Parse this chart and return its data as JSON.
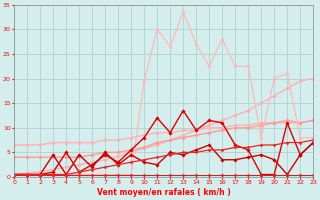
{
  "background_color": "#d4eeee",
  "grid_color": "#aacccc",
  "xlabel": "Vent moyen/en rafales ( km/h )",
  "xlim": [
    0,
    23
  ],
  "ylim": [
    0,
    35
  ],
  "yticks": [
    0,
    5,
    10,
    15,
    20,
    25,
    30,
    35
  ],
  "xticks": [
    0,
    1,
    2,
    3,
    4,
    5,
    6,
    7,
    8,
    9,
    10,
    11,
    12,
    13,
    14,
    15,
    16,
    17,
    18,
    19,
    20,
    21,
    22,
    23
  ],
  "series": [
    {
      "x": [
        0,
        1,
        2,
        3,
        4,
        5,
        6,
        7,
        8,
        9,
        10,
        11,
        12,
        13,
        14,
        15,
        16,
        17,
        18,
        19,
        20,
        21,
        22,
        23
      ],
      "y": [
        0.5,
        0.8,
        1.1,
        1.5,
        2.0,
        2.5,
        3.0,
        3.5,
        4.2,
        5.0,
        5.8,
        6.5,
        7.5,
        8.5,
        9.5,
        10.5,
        11.5,
        12.5,
        13.5,
        15.0,
        16.5,
        18.0,
        19.5,
        20.0
      ],
      "color": "#ffb0b0",
      "linewidth": 1.0,
      "marker": "D",
      "markersize": 1.8,
      "linestyle": "-"
    },
    {
      "x": [
        0,
        1,
        2,
        3,
        4,
        5,
        6,
        7,
        8,
        9,
        10,
        11,
        12,
        13,
        14,
        15,
        16,
        17,
        18,
        19,
        20,
        21,
        22,
        23
      ],
      "y": [
        6.5,
        6.5,
        6.5,
        7.0,
        7.0,
        7.0,
        7.0,
        7.5,
        7.5,
        8.0,
        8.5,
        9.0,
        9.0,
        9.5,
        9.5,
        10.0,
        10.0,
        10.5,
        10.5,
        11.0,
        11.0,
        11.0,
        11.0,
        11.5
      ],
      "color": "#ffb0b0",
      "linewidth": 1.0,
      "marker": "D",
      "markersize": 1.8,
      "linestyle": "-"
    },
    {
      "x": [
        0,
        1,
        2,
        3,
        4,
        5,
        6,
        7,
        8,
        9,
        10,
        11,
        12,
        13,
        14,
        15,
        16,
        17,
        18,
        19,
        20,
        21,
        22,
        23
      ],
      "y": [
        4.0,
        4.0,
        4.0,
        4.0,
        4.0,
        4.0,
        4.5,
        5.0,
        5.0,
        5.5,
        6.0,
        7.0,
        7.5,
        8.0,
        8.5,
        9.0,
        9.5,
        10.0,
        10.0,
        10.5,
        11.0,
        11.5,
        11.0,
        11.5
      ],
      "color": "#ff9999",
      "linewidth": 1.0,
      "marker": "D",
      "markersize": 1.8,
      "linestyle": "-"
    },
    {
      "x": [
        0,
        1,
        2,
        3,
        4,
        5,
        6,
        7,
        8,
        9,
        10,
        11,
        12,
        13,
        14,
        15,
        16,
        17,
        18,
        19,
        20,
        21,
        22,
        23
      ],
      "y": [
        0.5,
        0.5,
        0.5,
        0.5,
        0.5,
        0.5,
        0.5,
        0.5,
        0.5,
        0.5,
        19.5,
        30.0,
        26.5,
        33.5,
        27.0,
        22.5,
        28.0,
        22.5,
        22.5,
        8.0,
        20.0,
        21.0,
        8.0,
        8.0
      ],
      "color": "#ffb8b8",
      "linewidth": 0.9,
      "marker": "D",
      "markersize": 1.8,
      "linestyle": "-"
    },
    {
      "x": [
        0,
        1,
        2,
        3,
        4,
        5,
        6,
        7,
        8,
        9,
        10,
        11,
        12,
        13,
        14,
        15,
        16,
        17,
        18,
        19,
        20,
        21,
        22,
        23
      ],
      "y": [
        0.5,
        0.5,
        0.5,
        1.0,
        5.0,
        1.0,
        2.5,
        4.5,
        3.0,
        5.5,
        8.0,
        12.0,
        9.0,
        13.5,
        9.5,
        11.5,
        11.0,
        6.5,
        5.5,
        0.5,
        0.5,
        11.0,
        4.5,
        7.0
      ],
      "color": "#dd0000",
      "linewidth": 1.0,
      "marker": "D",
      "markersize": 1.8,
      "linestyle": "-"
    },
    {
      "x": [
        0,
        1,
        2,
        3,
        4,
        5,
        6,
        7,
        8,
        9,
        10,
        11,
        12,
        13,
        14,
        15,
        16,
        17,
        18,
        19,
        20,
        21,
        22,
        23
      ],
      "y": [
        0.5,
        0.5,
        0.5,
        4.5,
        0.5,
        4.5,
        2.0,
        5.0,
        2.5,
        4.5,
        3.0,
        2.5,
        5.0,
        4.5,
        5.5,
        6.5,
        3.5,
        3.5,
        4.0,
        4.5,
        3.5,
        0.5,
        4.5,
        7.0
      ],
      "color": "#cc0000",
      "linewidth": 1.0,
      "marker": "D",
      "markersize": 1.8,
      "linestyle": "-"
    },
    {
      "x": [
        0,
        1,
        2,
        3,
        4,
        5,
        6,
        7,
        8,
        9,
        10,
        11,
        12,
        13,
        14,
        15,
        16,
        17,
        18,
        19,
        20,
        21,
        22,
        23
      ],
      "y": [
        0.5,
        0.5,
        0.5,
        0.5,
        0.5,
        0.5,
        0.5,
        0.5,
        0.5,
        0.5,
        0.5,
        0.5,
        0.5,
        0.5,
        0.5,
        0.5,
        0.5,
        0.5,
        0.5,
        0.5,
        0.5,
        0.5,
        0.5,
        0.5
      ],
      "color": "#cc2222",
      "linewidth": 0.8,
      "marker": "D",
      "markersize": 1.5,
      "linestyle": "-"
    },
    {
      "x": [
        0,
        1,
        2,
        3,
        4,
        5,
        6,
        7,
        8,
        9,
        10,
        11,
        12,
        13,
        14,
        15,
        16,
        17,
        18,
        19,
        20,
        21,
        22,
        23
      ],
      "y": [
        0.5,
        0.5,
        0.5,
        0.5,
        0.5,
        1.0,
        1.5,
        2.0,
        2.5,
        3.0,
        3.5,
        4.0,
        4.5,
        5.0,
        5.0,
        5.5,
        5.5,
        6.0,
        6.0,
        6.5,
        6.5,
        7.0,
        7.0,
        7.5
      ],
      "color": "#ee2222",
      "linewidth": 0.9,
      "marker": "D",
      "markersize": 1.5,
      "linestyle": "-"
    }
  ]
}
